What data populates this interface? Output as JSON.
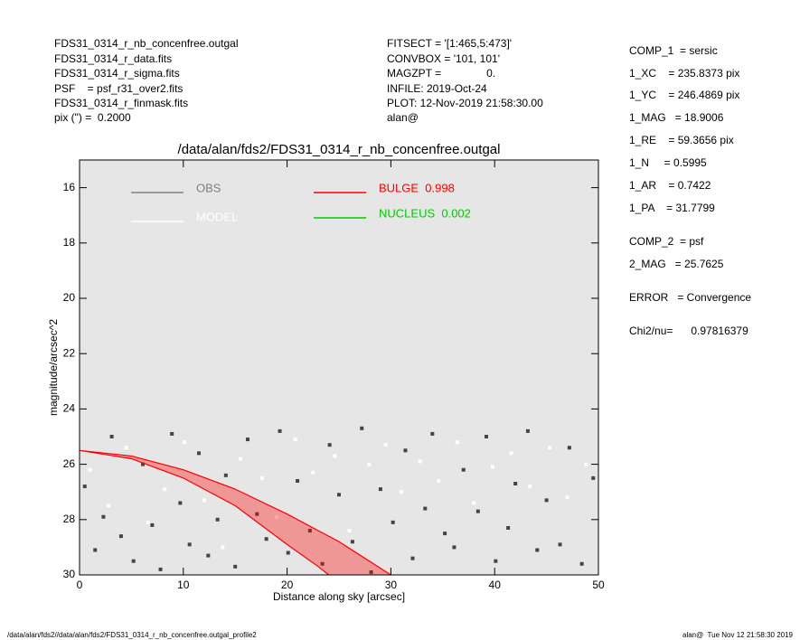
{
  "header": {
    "left": [
      "FDS31_0314_r_nb_concenfree.outgal",
      "FDS31_0314_r_data.fits",
      "FDS31_0314_r_sigma.fits",
      "PSF    = psf_r31_over2.fits",
      "FDS31_0314_r_finmask.fits",
      "pix (\") =  0.2000"
    ],
    "middle": [
      "FITSECT = '[1:465,5:473]'",
      "CONVBOX = '101, 101'",
      "MAGZPT =               0.",
      "INFILE: 2019-Oct-24",
      "PLOT: 12-Nov-2019 21:58:30.00",
      "alan@"
    ],
    "right": [
      "COMP_1  = sersic",
      "1_XC    = 235.8373 pix",
      "1_YC    = 246.4869 pix",
      "1_MAG   = 18.9006",
      "1_RE    = 59.3656 pix",
      "1_N     = 0.5995",
      "1_AR    = 0.7422",
      "1_PA    = 31.7799",
      "COMP_2  = psf",
      "2_MAG   = 25.7625",
      "ERROR   = Convergence",
      "Chi2/nu=      0.97816379"
    ]
  },
  "footer": {
    "left": "/data/alan/fds2//data/alan/fds2/FDS31_0314_r_nb_concenfree.outgal_profile2",
    "right": "alan@  Tue Nov 12 21:58:30 2019"
  },
  "chart_data": {
    "type": "scatter",
    "title": "/data/alan/fds2/FDS31_0314_r_nb_concenfree.outgal",
    "xlabel": "Distance along sky [arcsec]",
    "ylabel": "magnitude/arcsec^2",
    "xlim": [
      0,
      50
    ],
    "ylim": [
      15,
      30
    ],
    "y_inverted": true,
    "xticks": [
      0,
      10,
      20,
      30,
      40,
      50
    ],
    "yticks": [
      16,
      18,
      20,
      22,
      24,
      26,
      28,
      30
    ],
    "series": [
      {
        "name": "OBS",
        "color": "#444444",
        "legend_color": "#808080",
        "x": [
          0.5,
          1.5,
          2.3,
          3.1,
          4.0,
          5.2,
          6.1,
          7.0,
          7.8,
          8.9,
          9.7,
          10.6,
          11.5,
          12.4,
          13.3,
          14.1,
          15.0,
          16.2,
          17.1,
          18.0,
          19.3,
          20.1,
          21.0,
          22.2,
          23.4,
          24.1,
          25.0,
          26.3,
          27.2,
          28.1,
          29.0,
          30.2,
          31.4,
          32.1,
          33.3,
          34.0,
          35.2,
          36.1,
          37.0,
          38.4,
          39.2,
          40.1,
          41.3,
          42.0,
          43.2,
          44.1,
          45.0,
          46.3,
          47.2,
          48.4,
          49.5
        ],
        "values": [
          26.8,
          29.1,
          27.9,
          25.0,
          28.6,
          29.5,
          26.0,
          28.2,
          29.8,
          24.9,
          27.4,
          28.9,
          25.6,
          29.3,
          28.0,
          26.4,
          29.7,
          25.1,
          27.8,
          28.7,
          24.8,
          29.2,
          26.6,
          28.4,
          29.6,
          25.3,
          27.1,
          28.8,
          24.7,
          29.9,
          26.9,
          28.1,
          25.5,
          29.4,
          27.6,
          24.9,
          28.5,
          29.0,
          26.2,
          27.7,
          25.0,
          29.5,
          28.3,
          26.7,
          24.8,
          29.1,
          27.3,
          28.9,
          25.4,
          29.6,
          26.5
        ]
      },
      {
        "name": "MODEL",
        "color": "#ffffff",
        "x": [
          1.0,
          2.8,
          4.5,
          6.6,
          8.2,
          10.1,
          12.0,
          13.8,
          15.5,
          17.6,
          19.0,
          20.8,
          22.5,
          24.6,
          26.0,
          27.9,
          29.5,
          31.0,
          32.8,
          34.6,
          36.4,
          38.0,
          39.8,
          41.6,
          43.4,
          45.3,
          47.0,
          48.8
        ],
        "values": [
          26.2,
          27.5,
          25.4,
          28.1,
          26.9,
          25.2,
          27.3,
          29.0,
          25.8,
          26.5,
          27.9,
          25.1,
          26.3,
          25.7,
          28.4,
          26.0,
          25.3,
          27.0,
          25.9,
          26.6,
          25.2,
          27.4,
          26.1,
          25.6,
          26.8,
          25.4,
          27.2,
          26.0
        ]
      },
      {
        "name": "BULGE  0.998",
        "color": "#ff0000",
        "curves": [
          {
            "x": [
              0,
              5,
              10,
              15,
              20,
              25,
              30
            ],
            "values": [
              25.5,
              25.7,
              26.2,
              26.9,
              27.8,
              28.8,
              30
            ]
          },
          {
            "x": [
              0,
              5,
              10,
              15,
              20,
              23,
              24
            ],
            "values": [
              25.5,
              25.8,
              26.5,
              27.5,
              28.9,
              29.7,
              30
            ]
          }
        ]
      },
      {
        "name": "NUCLEUS  0.002",
        "color": "#00cc00"
      }
    ]
  }
}
